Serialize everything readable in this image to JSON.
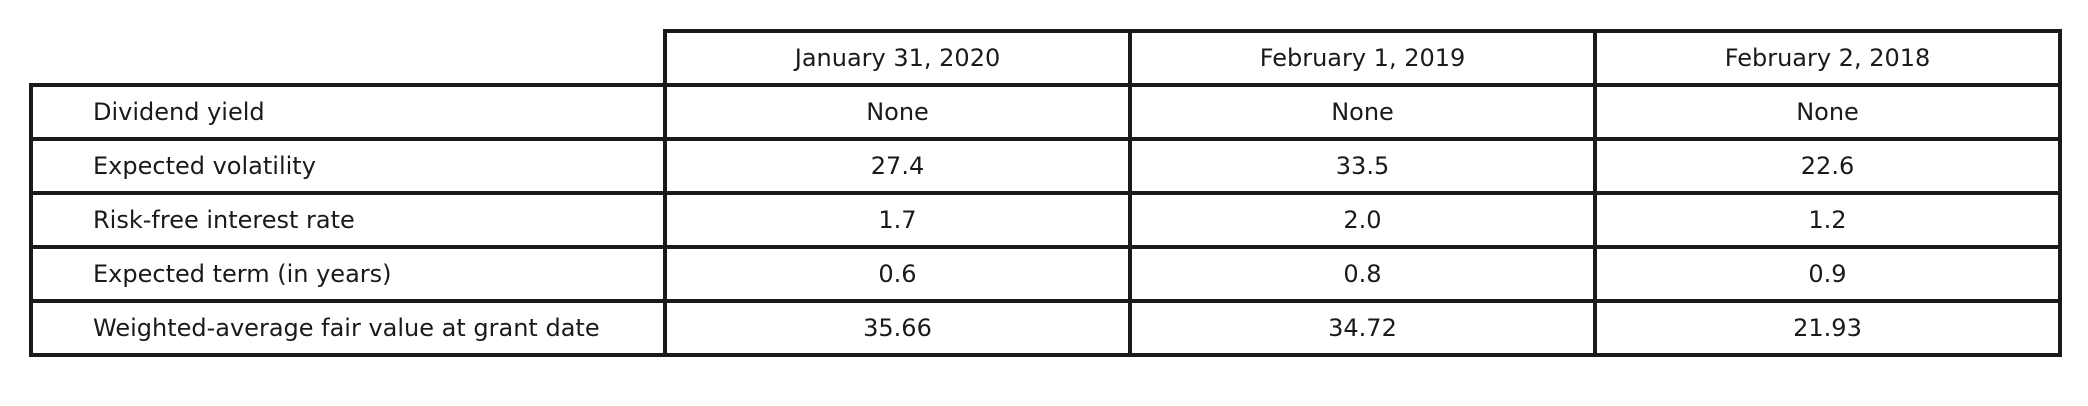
{
  "table": {
    "columns": [
      "January 31, 2020",
      "February 1, 2019",
      "February 2, 2018"
    ],
    "rows": [
      {
        "label": "Dividend yield",
        "values": [
          "None",
          "None",
          "None"
        ]
      },
      {
        "label": "Expected volatility",
        "values": [
          "27.4",
          "33.5",
          "22.6"
        ]
      },
      {
        "label": "Risk-free interest rate",
        "values": [
          "1.7",
          "2.0",
          "1.2"
        ]
      },
      {
        "label": "Expected term (in years)",
        "values": [
          "0.6",
          "0.8",
          "0.9"
        ]
      },
      {
        "label": "Weighted-average fair value at grant date",
        "values": [
          "35.66",
          "34.72",
          "21.93"
        ]
      }
    ]
  }
}
